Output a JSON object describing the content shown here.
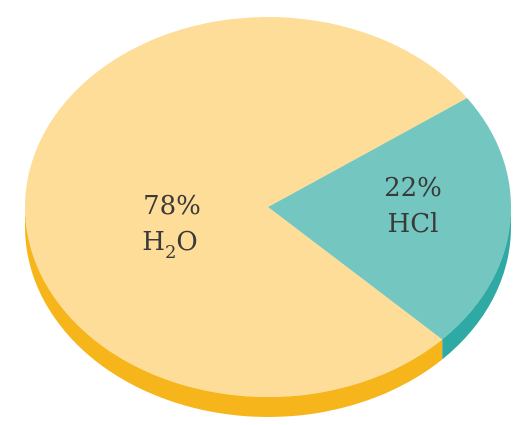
{
  "chart_data": {
    "type": "pie",
    "title": "",
    "slices": [
      {
        "label": "H2O",
        "label_main": "H",
        "label_sub": "2",
        "label_tail": "O",
        "value": 78,
        "value_label": "78%",
        "top_color": "#FDDD97",
        "side_color": "#F6B51B"
      },
      {
        "label": "HCl",
        "label_main": "HCl",
        "label_sub": "",
        "label_tail": "",
        "value": 22,
        "value_label": "22%",
        "top_color": "#74C6C0",
        "side_color": "#2EA9A3"
      }
    ],
    "style": "3d-tilted"
  }
}
